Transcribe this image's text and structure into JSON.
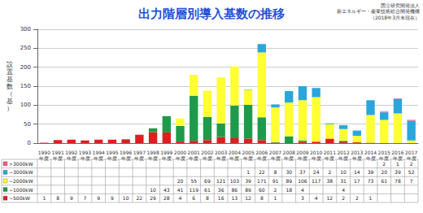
{
  "chart_data": {
    "type": "bar",
    "title": "出力階層別導入基数の推移",
    "annotations": [
      "国立研究開発法人",
      "新エネルギー・産業技術総合開発機構",
      "（2018年3月末現在）"
    ],
    "y_label": "設置基数（基）",
    "categories": [
      "1990年度",
      "1991年度",
      "1992年度",
      "1993年度",
      "1994年度",
      "1995年度",
      "1996年度",
      "1997年度",
      "1998年度",
      "1999年度",
      "2000年度",
      "2001年度",
      "2002年度",
      "2003年度",
      "2004年度",
      "2005年度",
      "2006年度",
      "2007年度",
      "2008年度",
      "2009年度",
      "2010年度",
      "2011年度",
      "2012年度",
      "2013年度",
      "2014年度",
      "2015年度",
      "2016年度",
      "2017年度"
    ],
    "stacked": true,
    "grid": true,
    "data_labels": false,
    "ylim": [
      0,
      300
    ],
    "yticks": [
      0,
      50,
      100,
      150,
      200,
      250,
      300
    ],
    "series": [
      {
        "name": "~500kW",
        "color": "#e01e1e",
        "values": [
          1,
          8,
          9,
          7,
          9,
          9,
          10,
          22,
          29,
          28,
          4,
          6,
          8,
          16,
          13,
          12,
          8,
          1,
          null,
          3,
          4,
          12,
          2,
          2,
          1,
          null,
          null,
          null
        ]
      },
      {
        "name": "~1000kW",
        "color": "#1f9a4a",
        "values": [
          null,
          null,
          null,
          null,
          null,
          null,
          null,
          null,
          10,
          43,
          41,
          119,
          61,
          36,
          86,
          89,
          60,
          2,
          18,
          4,
          null,
          null,
          4,
          null,
          null,
          null,
          null,
          null
        ]
      },
      {
        "name": "~2000kW",
        "color": "#ffff33",
        "values": [
          null,
          null,
          null,
          null,
          null,
          null,
          null,
          null,
          null,
          null,
          20,
          55,
          69,
          121,
          103,
          39,
          171,
          91,
          89,
          106,
          117,
          38,
          31,
          17,
          73,
          61,
          78,
          7
        ]
      },
      {
        "name": "~3000kW",
        "color": "#2aa6dc",
        "values": [
          null,
          null,
          null,
          null,
          null,
          null,
          null,
          null,
          null,
          null,
          null,
          null,
          null,
          null,
          null,
          1,
          22,
          8,
          30,
          37,
          24,
          2,
          10,
          14,
          39,
          20,
          39,
          52
        ]
      },
      {
        "name": ">3000kW",
        "color": "#f2557e",
        "values": [
          null,
          null,
          null,
          null,
          null,
          null,
          null,
          null,
          null,
          null,
          null,
          null,
          null,
          null,
          null,
          null,
          null,
          null,
          null,
          null,
          null,
          null,
          null,
          null,
          null,
          2,
          1,
          2
        ]
      }
    ]
  }
}
